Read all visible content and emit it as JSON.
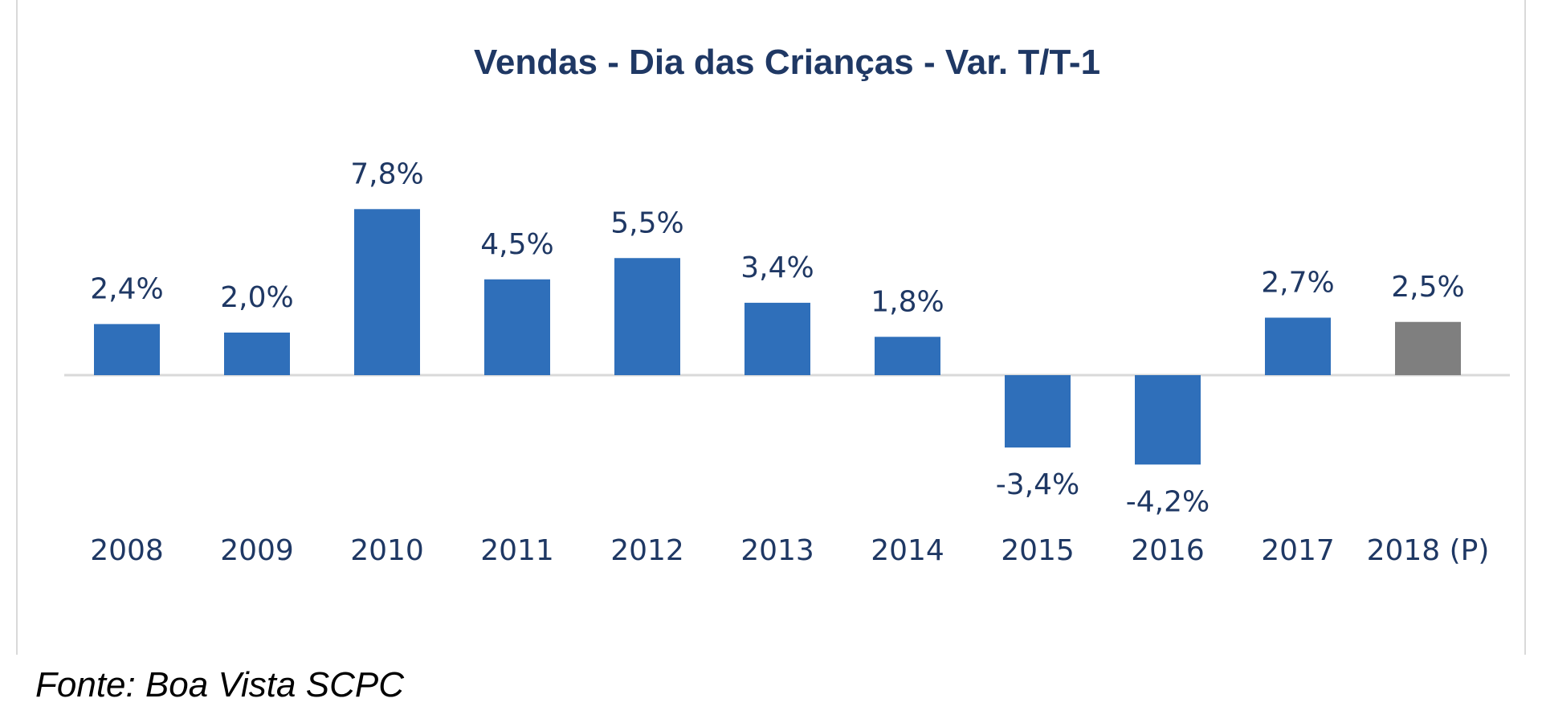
{
  "chart_data": {
    "type": "bar",
    "title": "Vendas - Dia das Crianças - Var. T/T-1",
    "xlabel": "",
    "ylabel": "",
    "categories": [
      "2008",
      "2009",
      "2010",
      "2011",
      "2012",
      "2013",
      "2014",
      "2015",
      "2016",
      "2017",
      "2018 (P)"
    ],
    "values": [
      2.4,
      2.0,
      7.8,
      4.5,
      5.5,
      3.4,
      1.8,
      -3.4,
      -4.2,
      2.7,
      2.5
    ],
    "data_labels": [
      "2,4%",
      "2,0%",
      "7,8%",
      "4,5%",
      "5,5%",
      "3,4%",
      "1,8%",
      "-3,4%",
      "-4,2%",
      "2,7%",
      "2,5%"
    ],
    "bar_colors": [
      "#2f6fba",
      "#2f6fba",
      "#2f6fba",
      "#2f6fba",
      "#2f6fba",
      "#2f6fba",
      "#2f6fba",
      "#2f6fba",
      "#2f6fba",
      "#2f6fba",
      "#7f7f7f"
    ],
    "ylim": [
      -4.5,
      8.0
    ],
    "grid": false,
    "legend": "none",
    "colors": {
      "bar": "#2f6fba",
      "projection_bar": "#7f7f7f",
      "text": "#1f3864",
      "axis_line": "#d9d9d9"
    }
  },
  "source_note": "Fonte: Boa Vista SCPC"
}
